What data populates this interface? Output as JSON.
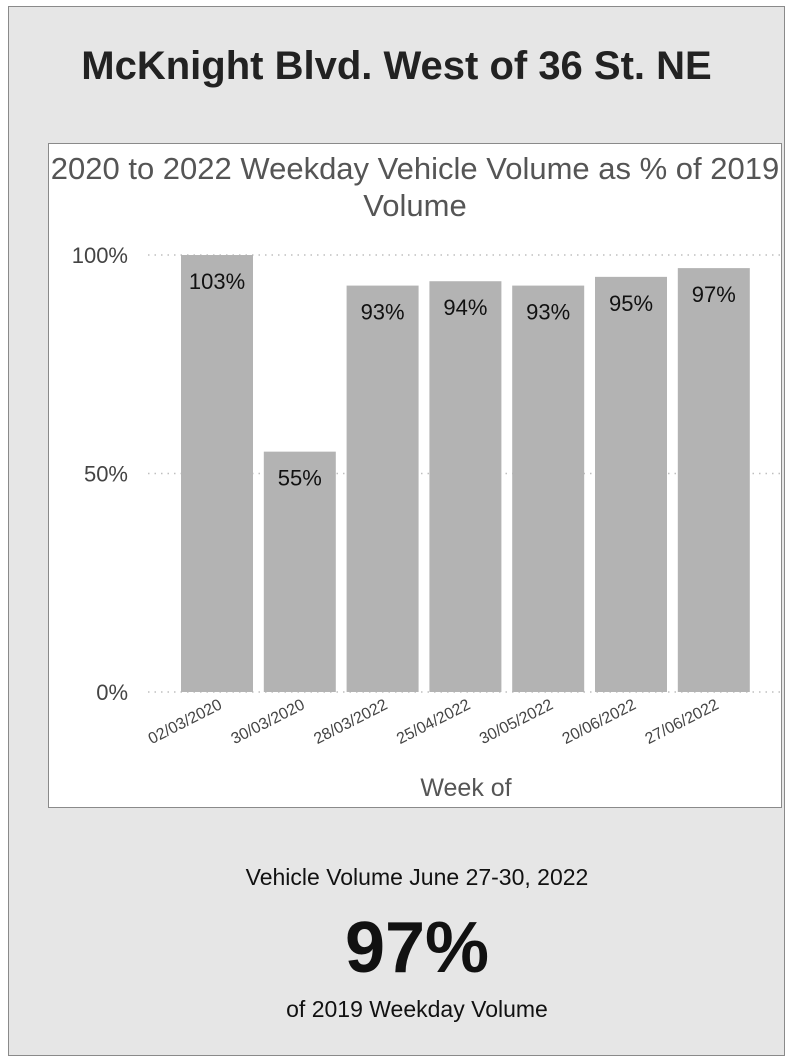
{
  "main_title": "McKnight Blvd. West of 36 St. NE",
  "summary": {
    "label": "Vehicle Volume June 27-30, 2022",
    "value": "97%",
    "sub": "of 2019 Weekday Volume"
  },
  "colors": {
    "bar": "#b3b3b3",
    "panel": "#e6e6e6",
    "grid": "#bfbfbf"
  },
  "chart_data": {
    "type": "bar",
    "title": "2020 to 2022 Weekday Vehicle Volume as % of 2019 Volume",
    "xlabel": "Week of",
    "ylabel": "",
    "categories": [
      "02/03/2020",
      "30/03/2020",
      "28/03/2022",
      "25/04/2022",
      "30/05/2022",
      "20/06/2022",
      "27/06/2022"
    ],
    "values": [
      103,
      55,
      93,
      94,
      93,
      95,
      97
    ],
    "data_labels": [
      "103%",
      "55%",
      "93%",
      "94%",
      "93%",
      "95%",
      "97%"
    ],
    "ylim": [
      0,
      100
    ],
    "yticks": [
      0,
      50,
      100
    ],
    "ytick_labels": [
      "0%",
      "50%",
      "100%"
    ],
    "grid": "dotted horizontal",
    "legend": "none"
  }
}
